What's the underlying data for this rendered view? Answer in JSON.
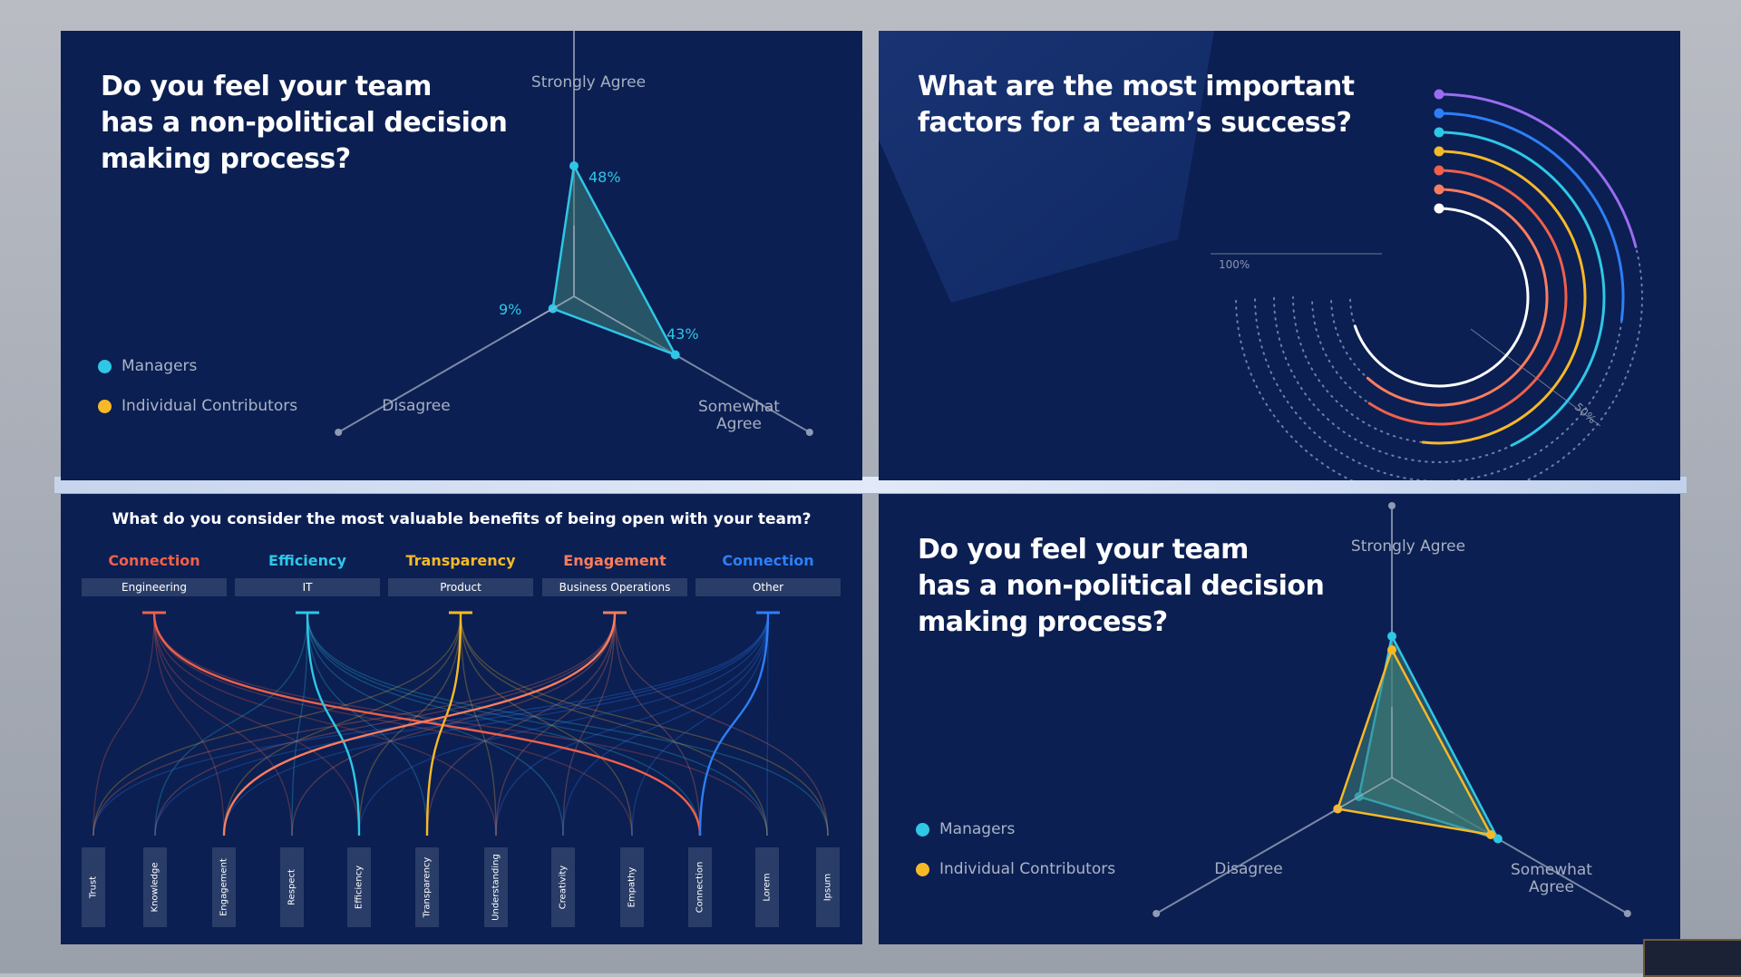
{
  "colors": {
    "panel_bg": "#0b1f52",
    "managers": "#2ec7e6",
    "individual_contributors": "#f7b928",
    "axis": "#7c88a6"
  },
  "panel1": {
    "question": "Do you feel your team has a non-political decision making process?",
    "question_lines": [
      "Do you feel your team",
      "has a non-political decision",
      "making process?"
    ],
    "legend": [
      "Managers",
      "Individual Contributors"
    ],
    "axes": [
      "Strongly Agree",
      "Disagree",
      "Somewhat Agree"
    ],
    "axis_somewhat_lines": [
      "Somewhat",
      "Agree"
    ],
    "labels": [
      "48%",
      "9%",
      "43%"
    ]
  },
  "panel2": {
    "question": "What are the most important factors for a team's success?",
    "question_lines": [
      "What are the most important",
      "factors for a team’s success?"
    ],
    "scale_start": "100%",
    "scale_mid": "50%"
  },
  "panel3": {
    "title": "What do you consider the most valuable benefits of being open with your team?",
    "groups": [
      {
        "category": "Connection",
        "dept": "Engineering",
        "color": "#f0604a"
      },
      {
        "category": "Efficiency",
        "dept": "IT",
        "color": "#2ec7e6"
      },
      {
        "category": "Transparency",
        "dept": "Product",
        "color": "#f7b928"
      },
      {
        "category": "Engagement",
        "dept": "Business Operations",
        "color": "#fb7d5e"
      },
      {
        "category": "Connection",
        "dept": "Other",
        "color": "#2d7ff9"
      }
    ],
    "benefits": [
      "Trust",
      "Knowledge",
      "Engagement",
      "Respect",
      "Efficiency",
      "Transparency",
      "Understanding",
      "Creativity",
      "Empathy",
      "Connection",
      "Lorem",
      "Ipsum"
    ]
  },
  "panel4": {
    "question": "Do you feel your team has a non-political decision making process?",
    "question_lines": [
      "Do you feel your team",
      "has a non-political decision",
      "making process?"
    ],
    "legend": [
      "Managers",
      "Individual Contributors"
    ],
    "axes": [
      "Strongly Agree",
      "Disagree",
      "Somewhat Agree"
    ],
    "axis_somewhat_lines": [
      "Somewhat",
      "Agree"
    ]
  },
  "chart_data": [
    {
      "type": "radar",
      "axes": [
        "Strongly Agree",
        "Somewhat Agree",
        "Disagree"
      ],
      "series": [
        {
          "name": "Managers",
          "values": [
            48,
            43,
            9
          ]
        }
      ],
      "range": [
        0,
        100
      ]
    },
    {
      "type": "radial-bar",
      "bars": 7,
      "colors": [
        "#9a6cf0",
        "#2d7ff9",
        "#2ec7e6",
        "#f7b928",
        "#f0604a",
        "#fb7d5e",
        "#ffffff"
      ],
      "values": [
        0.28,
        0.36,
        0.57,
        0.69,
        0.79,
        0.82,
        0.93
      ],
      "axis_labels": [
        "100%",
        "50%"
      ]
    },
    {
      "type": "parallel-sets",
      "sources": [
        "Engineering",
        "IT",
        "Product",
        "Business Operations",
        "Other"
      ],
      "targets": [
        "Trust",
        "Knowledge",
        "Engagement",
        "Respect",
        "Efficiency",
        "Transparency",
        "Understanding",
        "Creativity",
        "Empathy",
        "Connection",
        "Lorem",
        "Ipsum"
      ],
      "highlight": [
        {
          "source": "Engineering",
          "target": "Connection"
        },
        {
          "source": "IT",
          "target": "Efficiency"
        },
        {
          "source": "Product",
          "target": "Transparency"
        },
        {
          "source": "Business Operations",
          "target": "Engagement"
        },
        {
          "source": "Other",
          "target": "Connection"
        }
      ]
    },
    {
      "type": "radar",
      "axes": [
        "Strongly Agree",
        "Somewhat Agree",
        "Disagree"
      ],
      "series": [
        {
          "name": "Managers",
          "values": [
            52,
            45,
            14
          ]
        },
        {
          "name": "Individual Contributors",
          "values": [
            47,
            42,
            23
          ]
        }
      ],
      "range": [
        0,
        100
      ]
    }
  ]
}
